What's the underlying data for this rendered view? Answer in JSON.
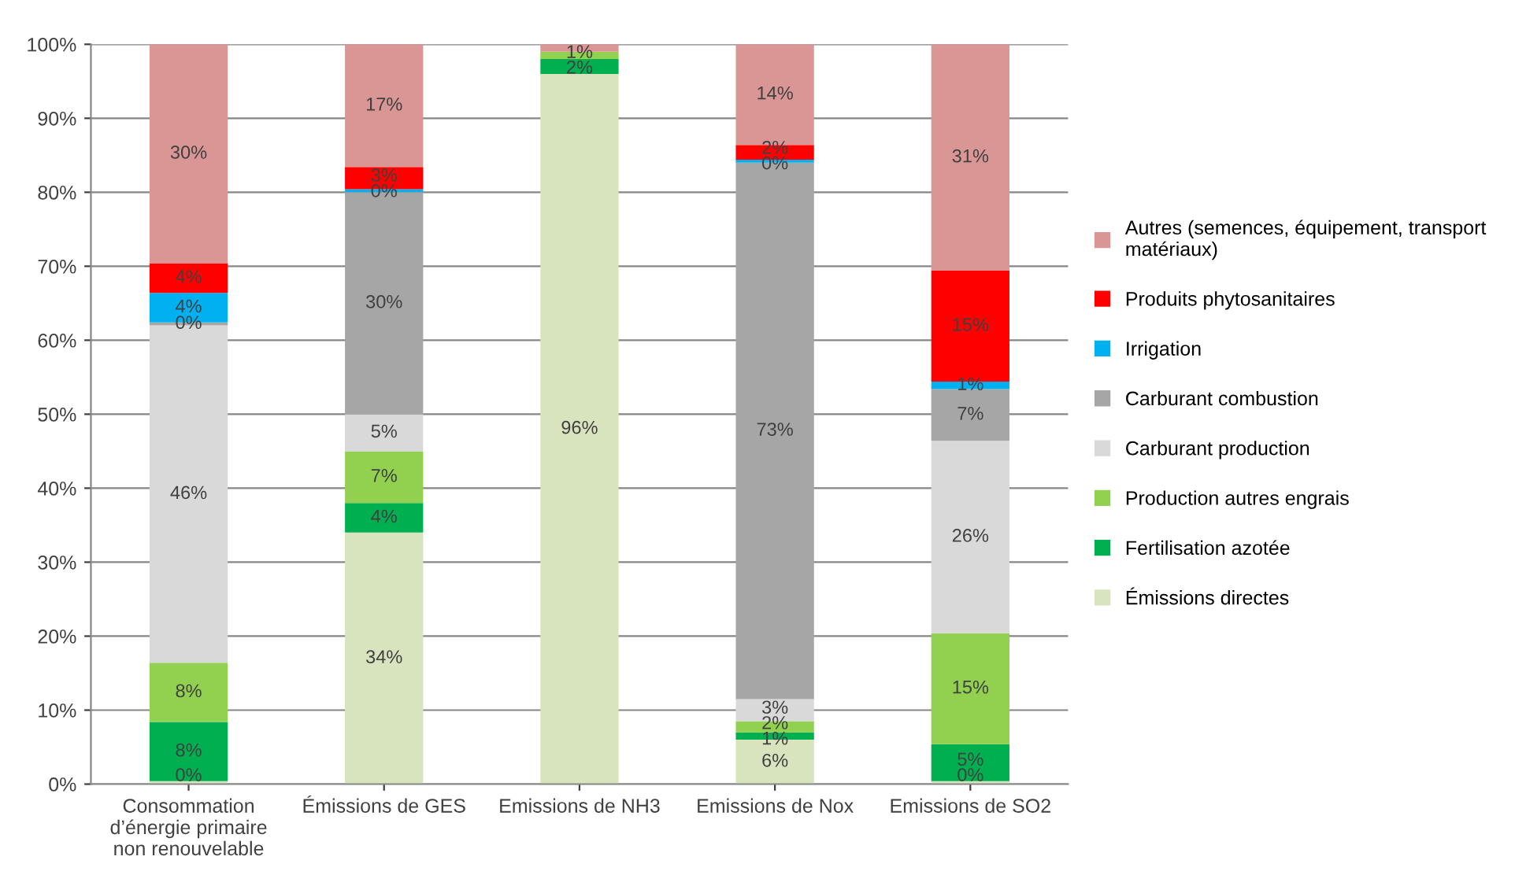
{
  "chart_data": {
    "type": "bar",
    "stacked": true,
    "categories": [
      "Consommation\nd’énergie primaire\nnon renouvelable",
      "Émissions de GES",
      "Emissions de NH3",
      "Emissions de Nox",
      "Emissions de SO2"
    ],
    "series": [
      {
        "name": "Émissions directes",
        "color": "#d7e4bd",
        "values": [
          0.4,
          34,
          96,
          6,
          0.4
        ],
        "value_labels": [
          "0%",
          "34%",
          "96%",
          "6%",
          "0%"
        ]
      },
      {
        "name": "Fertilisation azotée",
        "color": "#00b050",
        "values": [
          8,
          4,
          2,
          1,
          5
        ],
        "value_labels": [
          "8%",
          "4%",
          "2%",
          "1%",
          "5%"
        ]
      },
      {
        "name": "Production autres engrais",
        "color": "#92d050",
        "values": [
          8,
          7,
          1,
          1.5,
          15
        ],
        "value_labels": [
          "8%",
          "7%",
          "1%",
          "2%",
          "15%"
        ]
      },
      {
        "name": "Carburant production",
        "color": "#d9d9d9",
        "values": [
          45.6,
          5,
          0,
          3,
          26
        ],
        "value_labels": [
          "46%",
          "5%",
          null,
          "3%",
          "26%"
        ]
      },
      {
        "name": "Carburant combustion",
        "color": "#a6a6a6",
        "values": [
          0.4,
          30,
          0,
          72.5,
          7
        ],
        "value_labels": [
          "0%",
          "30%",
          null,
          "73%",
          "7%"
        ]
      },
      {
        "name": "Irrigation",
        "color": "#00b0f0",
        "values": [
          4,
          0.4,
          0,
          0.4,
          1
        ],
        "value_labels": [
          "4%",
          "0%",
          null,
          "0%",
          "1%"
        ]
      },
      {
        "name": "Produits phytosanitaires",
        "color": "#ff0000",
        "values": [
          4,
          3,
          0,
          2,
          15
        ],
        "value_labels": [
          "4%",
          "3%",
          null,
          "2%",
          "15%"
        ]
      },
      {
        "name": "Autres (semences, équipement, transport\nmatériaux)",
        "color": "#d99694",
        "values": [
          29.6,
          16.6,
          1,
          13.6,
          30.6
        ],
        "value_labels": [
          "30%",
          "17%",
          null,
          "14%",
          "31%"
        ]
      }
    ],
    "ylim": [
      0,
      100
    ],
    "yticks": [
      {
        "value": 0,
        "label": "0%"
      },
      {
        "value": 10,
        "label": "10%"
      },
      {
        "value": 20,
        "label": "20%"
      },
      {
        "value": 30,
        "label": "30%"
      },
      {
        "value": 40,
        "label": "40%"
      },
      {
        "value": 50,
        "label": "50%"
      },
      {
        "value": 60,
        "label": "60%"
      },
      {
        "value": 70,
        "label": "70%"
      },
      {
        "value": 80,
        "label": "80%"
      },
      {
        "value": 90,
        "label": "90%"
      },
      {
        "value": 100,
        "label": "100%"
      }
    ],
    "grid": "y",
    "legend": "right"
  }
}
